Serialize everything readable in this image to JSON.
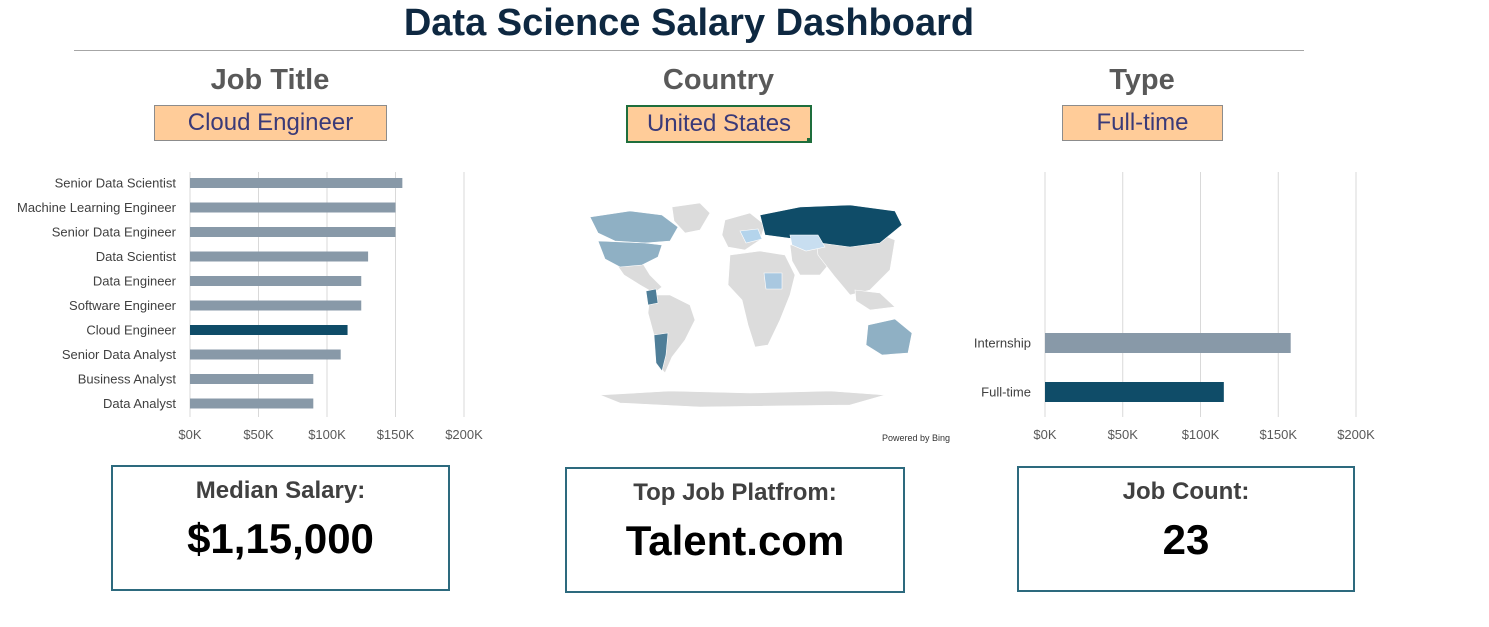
{
  "header": {
    "title": "Data Science Salary Dashboard"
  },
  "filters": {
    "job_title": {
      "label": "Job Title",
      "value": "Cloud Engineer"
    },
    "country": {
      "label": "Country",
      "value": "United States"
    },
    "type": {
      "label": "Type",
      "value": "Full-time"
    }
  },
  "map": {
    "attribution": "Powered by Bing"
  },
  "colors": {
    "bar": "#8899a8",
    "highlight": "#0f4c68",
    "grid": "#d9d9d9",
    "map_base": "#dcdcdc"
  },
  "chart_data": [
    {
      "type": "bar",
      "orientation": "horizontal",
      "categories": [
        "Senior Data Scientist",
        "Machine Learning Engineer",
        "Senior Data Engineer",
        "Data Scientist",
        "Data Engineer",
        "Software Engineer",
        "Cloud Engineer",
        "Senior Data Analyst",
        "Business Analyst",
        "Data Analyst"
      ],
      "values": [
        155000,
        150000,
        150000,
        130000,
        125000,
        125000,
        115000,
        110000,
        90000,
        90000
      ],
      "highlight": "Cloud Engineer",
      "xlim": [
        0,
        200000
      ],
      "xticks": [
        "$0K",
        "$50K",
        "$100K",
        "$150K",
        "$200K"
      ],
      "grid": true
    },
    {
      "type": "bar",
      "orientation": "horizontal",
      "categories": [
        "Internship",
        "Full-time"
      ],
      "values": [
        158000,
        115000
      ],
      "highlight": "Full-time",
      "xlim": [
        0,
        200000
      ],
      "xticks": [
        "$0K",
        "$50K",
        "$100K",
        "$150K",
        "$200K"
      ],
      "grid": true
    }
  ],
  "kpis": {
    "median_salary": {
      "label": "Median Salary:",
      "value": "$1,15,000"
    },
    "top_platform": {
      "label": "Top Job Platfrom:",
      "value": "Talent.com"
    },
    "job_count": {
      "label": "Job Count:",
      "value": "23"
    }
  }
}
